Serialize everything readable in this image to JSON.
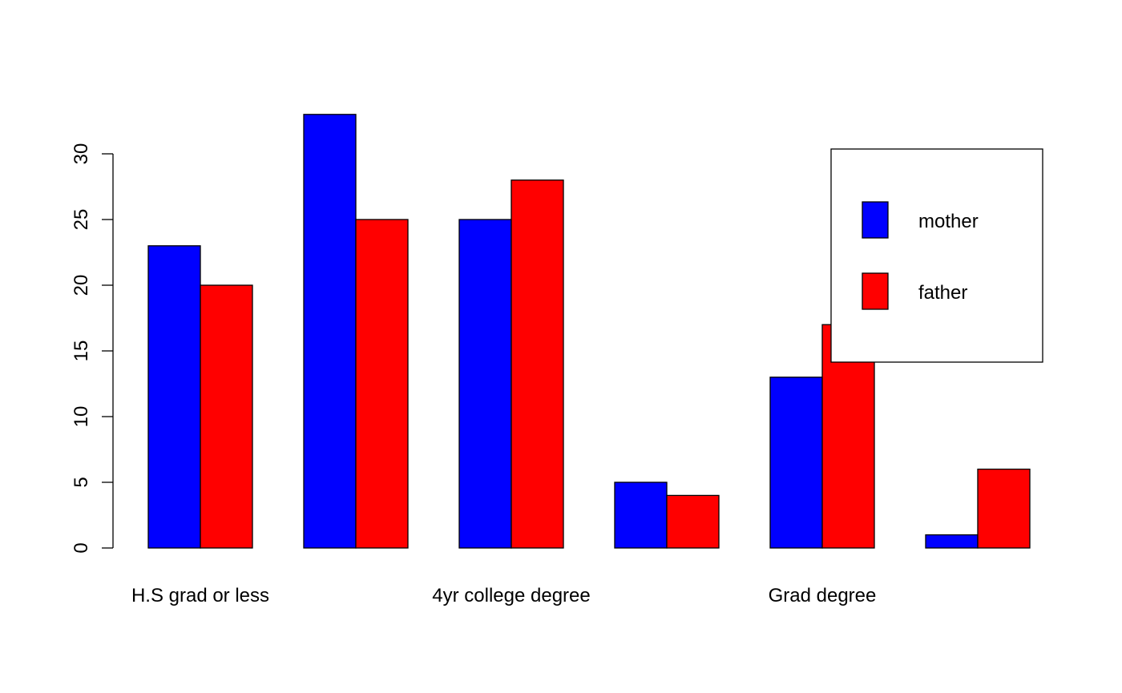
{
  "chart_data": {
    "type": "bar",
    "title": "",
    "xlabel": "",
    "ylabel": "",
    "ylim": [
      0,
      33
    ],
    "yticks": [
      0,
      5,
      10,
      15,
      20,
      25,
      30
    ],
    "categories": [
      "H.S grad or less",
      "",
      "4yr college degree",
      "",
      "Grad degree",
      ""
    ],
    "series": [
      {
        "name": "mother",
        "color": "#0000ff",
        "values": [
          23,
          33,
          25,
          5,
          13,
          1
        ]
      },
      {
        "name": "father",
        "color": "#ff0000",
        "values": [
          20,
          25,
          28,
          4,
          17,
          6
        ]
      }
    ],
    "legend": {
      "placement": "top-right",
      "entries": [
        "mother",
        "father"
      ]
    }
  }
}
